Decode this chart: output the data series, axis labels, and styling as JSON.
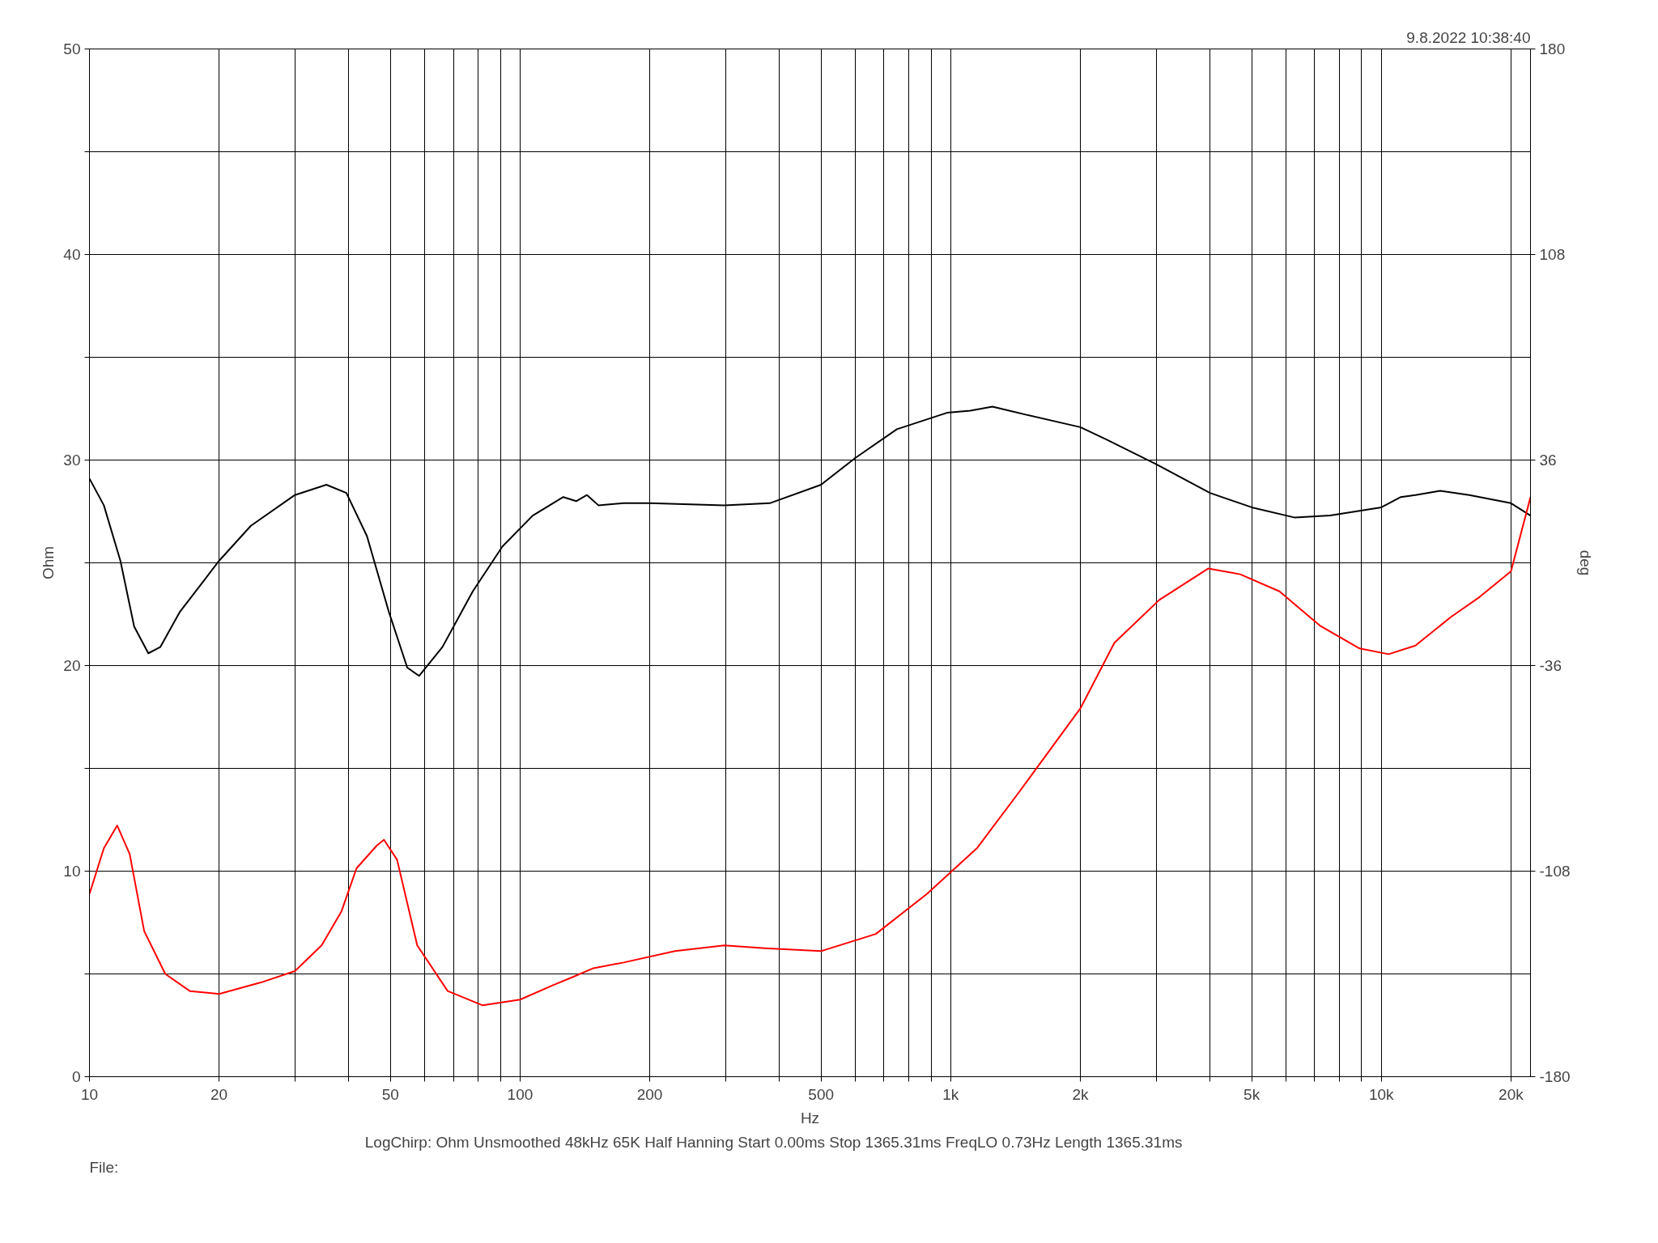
{
  "chart_data": {
    "type": "line",
    "xlabel": "Hz",
    "ylabel": "Ohm",
    "y2label": "deg",
    "log": "x",
    "grid": true,
    "line_style": "solid",
    "marker": "none",
    "xlim": [
      10,
      22200
    ],
    "ylim": [
      0,
      50
    ],
    "y2lim": [
      -180,
      180
    ],
    "xticks": [
      10,
      20,
      {
        "value": 30,
        "label": null
      },
      {
        "value": 40,
        "label": null
      },
      50,
      {
        "value": 60,
        "label": null
      },
      {
        "value": 70,
        "label": null
      },
      {
        "value": 80,
        "label": null
      },
      {
        "value": 90,
        "label": null
      },
      100,
      200,
      {
        "value": 300,
        "label": null
      },
      {
        "value": 400,
        "label": null
      },
      500,
      {
        "value": 600,
        "label": null
      },
      {
        "value": 700,
        "label": null
      },
      {
        "value": 800,
        "label": null
      },
      {
        "value": 900,
        "label": null
      },
      {
        "value": 1000,
        "label": "1k"
      },
      {
        "value": 2000,
        "label": "2k"
      },
      {
        "value": 3000,
        "label": null
      },
      {
        "value": 4000,
        "label": null
      },
      {
        "value": 5000,
        "label": "5k"
      },
      {
        "value": 6000,
        "label": null
      },
      {
        "value": 7000,
        "label": null
      },
      {
        "value": 8000,
        "label": null
      },
      {
        "value": 9000,
        "label": null
      },
      {
        "value": 10000,
        "label": "10k"
      },
      {
        "value": 20000,
        "label": "20k"
      }
    ],
    "yticks": [
      0,
      {
        "value": 5,
        "label": null
      },
      10,
      {
        "value": 15,
        "label": null
      },
      20,
      {
        "value": 25,
        "label": null
      },
      30,
      {
        "value": 35,
        "label": null
      },
      40,
      {
        "value": 45,
        "label": null
      },
      50
    ],
    "y2ticks": [
      -180,
      -108,
      -36,
      36,
      108,
      180
    ],
    "annotations": [
      "9.8.2022 10:38:40",
      "LogChirp:  Ohm   Unsmoothed   48kHz   65K   Half Hanning   Start 0.00ms   Stop 1365.31ms   FreqLO 0.73Hz   Length 1365.31ms",
      "File:"
    ],
    "series": [
      {
        "color": "#000000",
        "x": [
          10,
          10.8,
          11.8,
          12.7,
          13.7,
          14.6,
          16.2,
          20,
          23.7,
          30,
          35.5,
          39.5,
          44.1,
          49.6,
          54.7,
          58.3,
          66,
          77.6,
          91,
          107,
          126,
          135,
          143,
          152,
          174,
          200,
          298,
          380,
          500,
          600,
          750,
          980,
          1110,
          1250,
          1500,
          2000,
          2300,
          3000,
          4000,
          5000,
          6300,
          7600,
          10000,
          11100,
          12000,
          13700,
          16000,
          20000,
          22200
        ],
        "values": [
          29.1,
          27.8,
          25.1,
          21.9,
          20.6,
          20.9,
          22.6,
          25.1,
          26.8,
          28.3,
          28.8,
          28.4,
          26.3,
          22.6,
          19.9,
          19.5,
          20.9,
          23.6,
          25.8,
          27.3,
          28.2,
          28.0,
          28.3,
          27.8,
          27.9,
          27.9,
          27.8,
          27.9,
          28.8,
          30.1,
          31.5,
          32.3,
          32.4,
          32.6,
          32.2,
          31.6,
          31.0,
          29.8,
          28.4,
          27.7,
          27.2,
          27.3,
          27.7,
          28.2,
          28.3,
          28.5,
          28.3,
          27.9,
          27.3
        ]
      },
      {
        "color": "#ff0000",
        "axis": "y2",
        "x": [
          10,
          10.8,
          11.6,
          12.4,
          13.4,
          15,
          17.1,
          20,
          25,
          30,
          34.6,
          38.5,
          41.7,
          46.5,
          48.3,
          51.8,
          57.7,
          67.9,
          81.9,
          100,
          119,
          133,
          148,
          174,
          229,
          298,
          370,
          500,
          670,
          880,
          1150,
          1430,
          2000,
          2400,
          3050,
          3960,
          4700,
          5800,
          7200,
          8900,
          10400,
          12000,
          14500,
          16900,
          20000,
          22200
        ],
        "values": [
          -116,
          -100,
          -92,
          -102,
          -129,
          -144,
          -150,
          -151,
          -147,
          -143,
          -134,
          -122,
          -107,
          -99,
          -97,
          -104,
          -134,
          -150,
          -155,
          -153,
          -148,
          -145,
          -142,
          -140,
          -136,
          -134,
          -135,
          -136,
          -130,
          -116,
          -100,
          -81,
          -51,
          -28,
          -13,
          -2,
          -4,
          -10,
          -22,
          -30,
          -32,
          -29,
          -19,
          -12,
          -3,
          23
        ]
      }
    ]
  }
}
